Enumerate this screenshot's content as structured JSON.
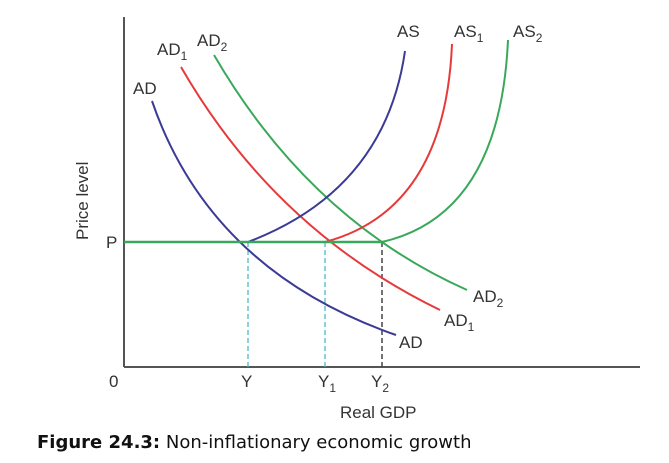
{
  "figure": {
    "caption_bold": "Figure 24.3:",
    "caption_text": " Non-inflationary economic growth"
  },
  "axes": {
    "y_label": "Price level",
    "x_label": "Real GDP",
    "origin": "0",
    "price_tick": "P",
    "x_ticks": [
      {
        "main": "Y",
        "sub": ""
      },
      {
        "main": "Y",
        "sub": "1"
      },
      {
        "main": "Y",
        "sub": "2"
      }
    ]
  },
  "curves": {
    "ad": {
      "main": "AD",
      "sub": "",
      "color": "#3b3b96"
    },
    "ad1": {
      "main": "AD",
      "sub": "1",
      "color": "#e63a3a"
    },
    "ad2": {
      "main": "AD",
      "sub": "2",
      "color": "#3aa85a"
    },
    "as": {
      "main": "AS",
      "sub": "",
      "color": "#3b3b96"
    },
    "as1": {
      "main": "AS",
      "sub": "1",
      "color": "#e63a3a"
    },
    "as2": {
      "main": "AS",
      "sub": "2",
      "color": "#3aa85a"
    }
  },
  "colors": {
    "axis": "#555555",
    "price_line": "#3aa85a",
    "dash_cyan": "#4ab8c8",
    "dash_gray": "#444444"
  }
}
